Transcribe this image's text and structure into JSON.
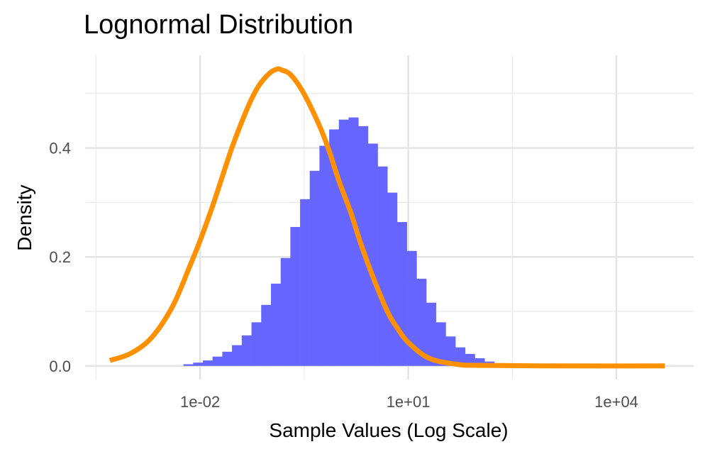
{
  "chart_data": {
    "type": "bar",
    "title": "Lognormal Distribution",
    "xlabel": "Sample Values (Log Scale)",
    "ylabel": "Density",
    "x_scale": "log10",
    "xlim": [
      0.00022,
      130000
    ],
    "ylim": [
      -0.025,
      0.57
    ],
    "grid": true,
    "legend": "none",
    "x_ticks": [
      {
        "value": 0.01,
        "label": "1e-02"
      },
      {
        "value": 10,
        "label": "1e+01"
      },
      {
        "value": 10000,
        "label": "1e+04"
      }
    ],
    "y_ticks": [
      {
        "value": 0.0,
        "label": "0.0"
      },
      {
        "value": 0.2,
        "label": "0.2"
      },
      {
        "value": 0.4,
        "label": "0.4"
      }
    ],
    "x_minor_breaks": [
      0.000316,
      0.316,
      316,
      316000
    ],
    "y_minor_breaks": [
      0.1,
      0.3,
      0.5
    ],
    "series": [
      {
        "kind": "histogram",
        "color": "#6666ff",
        "bins": [
          {
            "from": 0.00575,
            "to": 0.00794,
            "density": 0.003
          },
          {
            "from": 0.00794,
            "to": 0.011,
            "density": 0.006
          },
          {
            "from": 0.011,
            "to": 0.0151,
            "density": 0.01
          },
          {
            "from": 0.0151,
            "to": 0.0209,
            "density": 0.017
          },
          {
            "from": 0.0209,
            "to": 0.0288,
            "density": 0.026
          },
          {
            "from": 0.0288,
            "to": 0.0398,
            "density": 0.038
          },
          {
            "from": 0.0398,
            "to": 0.055,
            "density": 0.056
          },
          {
            "from": 0.055,
            "to": 0.0759,
            "density": 0.08
          },
          {
            "from": 0.0759,
            "to": 0.105,
            "density": 0.112
          },
          {
            "from": 0.105,
            "to": 0.145,
            "density": 0.151
          },
          {
            "from": 0.145,
            "to": 0.2,
            "density": 0.198
          },
          {
            "from": 0.2,
            "to": 0.276,
            "density": 0.255
          },
          {
            "from": 0.276,
            "to": 0.38,
            "density": 0.306
          },
          {
            "from": 0.38,
            "to": 0.525,
            "density": 0.358
          },
          {
            "from": 0.525,
            "to": 0.725,
            "density": 0.404
          },
          {
            "from": 0.725,
            "to": 1.0,
            "density": 0.434
          },
          {
            "from": 1.0,
            "to": 1.38,
            "density": 0.452
          },
          {
            "from": 1.38,
            "to": 1.91,
            "density": 0.456
          },
          {
            "from": 1.91,
            "to": 2.63,
            "density": 0.44
          },
          {
            "from": 2.63,
            "to": 3.63,
            "density": 0.408
          },
          {
            "from": 3.63,
            "to": 5.01,
            "density": 0.366
          },
          {
            "from": 5.01,
            "to": 6.92,
            "density": 0.318
          },
          {
            "from": 6.92,
            "to": 9.55,
            "density": 0.264
          },
          {
            "from": 9.55,
            "to": 13.2,
            "density": 0.211
          },
          {
            "from": 13.2,
            "to": 18.2,
            "density": 0.16
          },
          {
            "from": 18.2,
            "to": 25.1,
            "density": 0.116
          },
          {
            "from": 25.1,
            "to": 34.7,
            "density": 0.08
          },
          {
            "from": 34.7,
            "to": 47.9,
            "density": 0.054
          },
          {
            "from": 47.9,
            "to": 66.1,
            "density": 0.034
          },
          {
            "from": 66.1,
            "to": 91.2,
            "density": 0.022
          },
          {
            "from": 91.2,
            "to": 126,
            "density": 0.014
          },
          {
            "from": 126,
            "to": 174,
            "density": 0.008
          },
          {
            "from": 174,
            "to": 240,
            "density": 0.004
          },
          {
            "from": 240,
            "to": 331,
            "density": 0.002
          },
          {
            "from": 331,
            "to": 457,
            "density": 0.001
          }
        ]
      },
      {
        "kind": "line",
        "color": "#ff9100",
        "points": [
          {
            "x": 0.0005,
            "y": 0.01
          },
          {
            "x": 0.001,
            "y": 0.023
          },
          {
            "x": 0.002,
            "y": 0.052
          },
          {
            "x": 0.004,
            "y": 0.109
          },
          {
            "x": 0.007,
            "y": 0.181
          },
          {
            "x": 0.01,
            "y": 0.23
          },
          {
            "x": 0.015,
            "y": 0.292
          },
          {
            "x": 0.02,
            "y": 0.34
          },
          {
            "x": 0.03,
            "y": 0.407
          },
          {
            "x": 0.05,
            "y": 0.478
          },
          {
            "x": 0.07,
            "y": 0.514
          },
          {
            "x": 0.1,
            "y": 0.537
          },
          {
            "x": 0.13,
            "y": 0.545
          },
          {
            "x": 0.15,
            "y": 0.543
          },
          {
            "x": 0.2,
            "y": 0.535
          },
          {
            "x": 0.3,
            "y": 0.504
          },
          {
            "x": 0.5,
            "y": 0.447
          },
          {
            "x": 0.7,
            "y": 0.4
          },
          {
            "x": 1.0,
            "y": 0.34
          },
          {
            "x": 1.5,
            "y": 0.28
          },
          {
            "x": 2.0,
            "y": 0.23
          },
          {
            "x": 3.0,
            "y": 0.168
          },
          {
            "x": 5.0,
            "y": 0.1
          },
          {
            "x": 7.0,
            "y": 0.069
          },
          {
            "x": 10,
            "y": 0.043
          },
          {
            "x": 20,
            "y": 0.014
          },
          {
            "x": 50,
            "y": 0.003
          },
          {
            "x": 100,
            "y": 0.001
          },
          {
            "x": 1000,
            "y": 0.0
          },
          {
            "x": 50000,
            "y": 0.0
          }
        ]
      }
    ]
  }
}
